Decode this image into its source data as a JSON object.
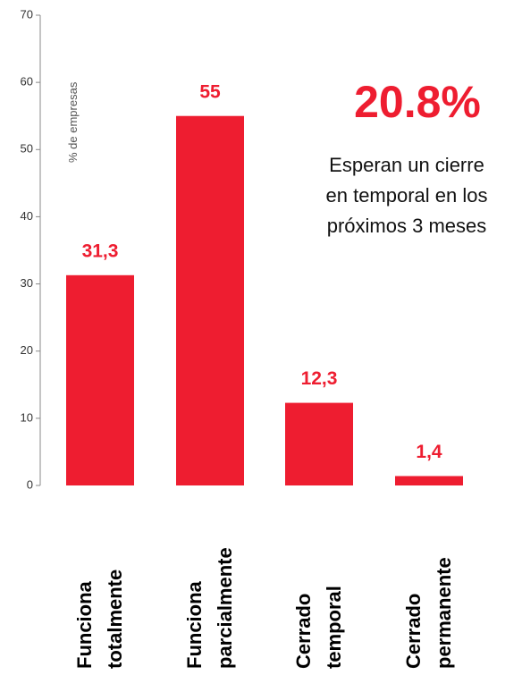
{
  "chart_data": {
    "type": "bar",
    "y_label": "% de empresas",
    "categories": [
      "Funciona\ntotalmente",
      "Funciona\nparcialmente",
      "Cerrado\ntemporal",
      "Cerrado\npermanente"
    ],
    "values": [
      31.3,
      55,
      12.3,
      1.4
    ],
    "value_labels": [
      "31,3",
      "55",
      "12,3",
      "1,4"
    ],
    "color": "#ee1d30",
    "ylim": [
      0,
      70
    ],
    "yticks": [
      0,
      10,
      20,
      30,
      40,
      50,
      60,
      70
    ],
    "annotation": {
      "value_label": "20.8%",
      "text": "Esperan un cierre\nen temporal en los\npróximos 3 meses"
    }
  }
}
